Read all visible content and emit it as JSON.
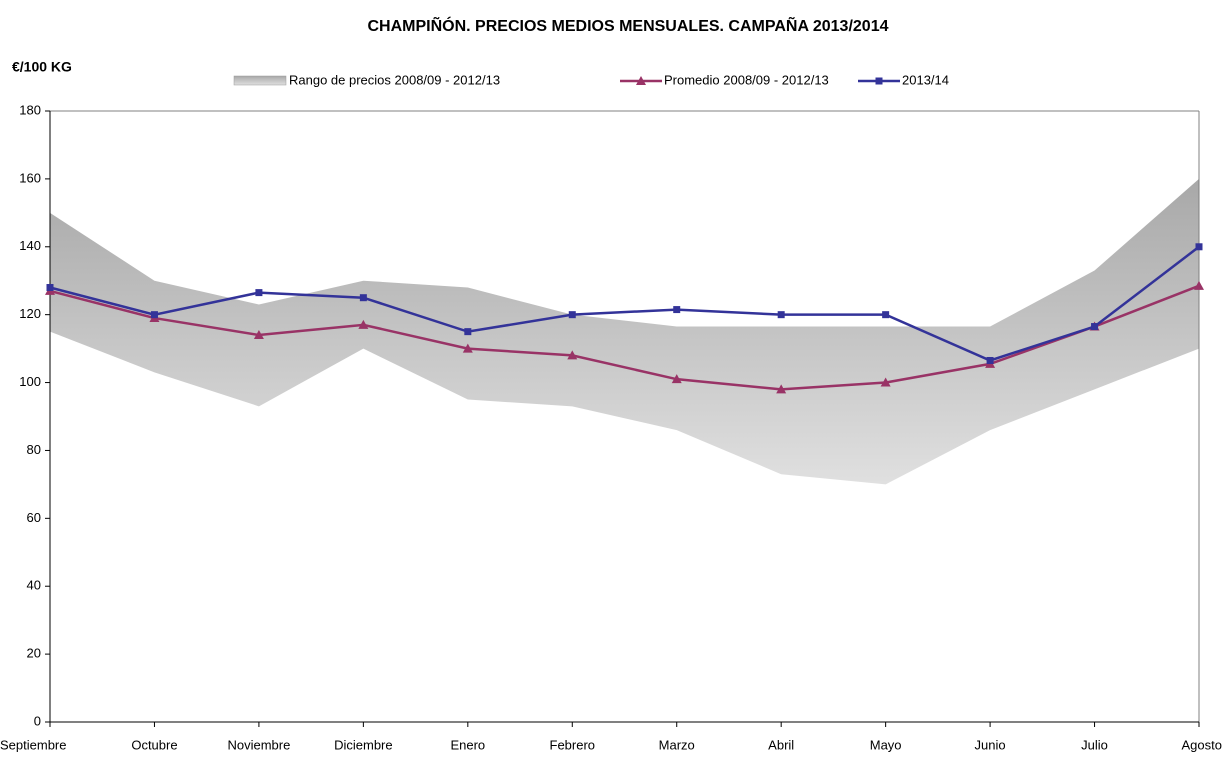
{
  "chart_data": {
    "type": "line",
    "title": "CHAMPIÑÓN. PRECIOS MEDIOS MENSUALES. CAMPAÑA 2013/2014",
    "y_label": "€/100 KG",
    "categories": [
      "Septiembre",
      "Octubre",
      "Noviembre",
      "Diciembre",
      "Enero",
      "Febrero",
      "Marzo",
      "Abril",
      "Mayo",
      "Junio",
      "Julio",
      "Agosto"
    ],
    "range": {
      "name": "Rango de precios 2008/09 - 2012/13",
      "color": "#b8b8b8",
      "upper": [
        150,
        130,
        123,
        130,
        128,
        120,
        116.5,
        116.5,
        116.5,
        116.5,
        133,
        160
      ],
      "lower": [
        115,
        103,
        93,
        110,
        95,
        93,
        86,
        73,
        70,
        86,
        98,
        110
      ]
    },
    "series": [
      {
        "name": "Promedio 2008/09 - 2012/13",
        "color": "#993366",
        "marker": "triangle",
        "values": [
          127,
          119,
          114,
          117,
          110,
          108,
          101,
          98,
          100,
          105.5,
          116.5,
          128.5
        ]
      },
      {
        "name": "2013/14",
        "color": "#333399",
        "marker": "square",
        "values": [
          128,
          120,
          126.5,
          125,
          115,
          120,
          121.5,
          120,
          120,
          106.5,
          116.5,
          140
        ]
      }
    ],
    "ylim": [
      0,
      180
    ],
    "yticks": [
      0,
      20,
      40,
      60,
      80,
      100,
      120,
      140,
      160,
      180
    ]
  }
}
